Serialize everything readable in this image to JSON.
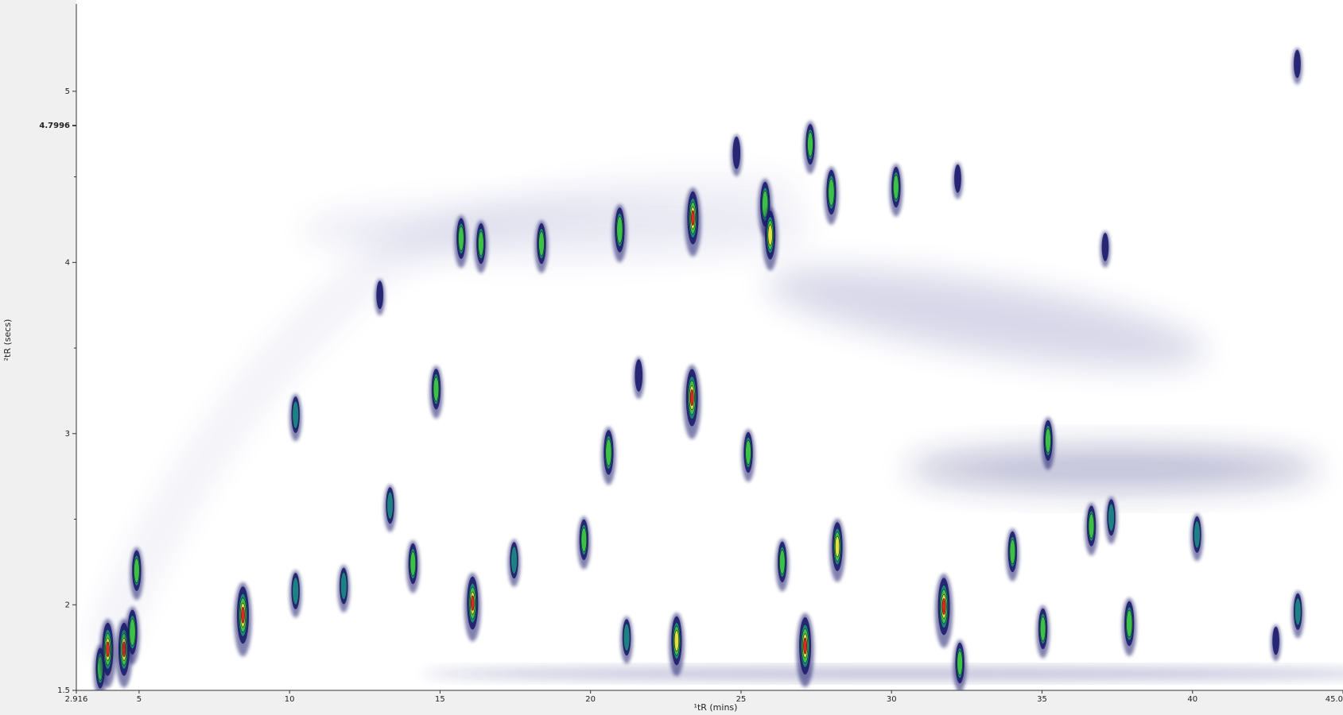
{
  "chart_data": {
    "type": "contour",
    "x_label": "¹tR (mins)",
    "y_label": "²tR (secs)",
    "xlim": [
      2.916,
      45.0
    ],
    "ylim": [
      1.5,
      5.51
    ],
    "xticks": [
      {
        "value": 2.916,
        "label": "2.916"
      },
      5,
      10,
      15,
      20,
      25,
      30,
      35,
      40,
      {
        "value": 45.0,
        "label": "45.0"
      }
    ],
    "yticks": [
      {
        "value": 1.5,
        "label": "1.5"
      },
      2,
      3,
      4,
      5
    ],
    "yminorticks": [
      2.5,
      3.5,
      4.5
    ],
    "marker_ytick": {
      "value": 4.7996,
      "label": "4.7996"
    },
    "colormap": [
      "#1c1c6e",
      "#1f7f86",
      "#3cc04a",
      "#e2e23c",
      "#e4261c"
    ],
    "x": [
      3.71,
      3.96,
      4.5,
      4.78,
      4.92,
      8.45,
      10.2,
      10.2,
      11.8,
      13.0,
      13.34,
      14.1,
      14.87,
      15.7,
      16.08,
      16.36,
      17.46,
      18.37,
      19.78,
      20.6,
      20.97,
      21.2,
      21.6,
      22.86,
      23.37,
      23.4,
      24.85,
      25.24,
      25.8,
      25.97,
      26.37,
      27.13,
      27.3,
      28.0,
      28.2,
      30.15,
      31.74,
      32.27,
      32.2,
      34.02,
      35.03,
      35.2,
      36.64,
      37.1,
      37.3,
      37.9,
      40.15,
      43.48,
      43.5,
      42.77
    ],
    "values": [
      1.63,
      1.74,
      1.74,
      1.84,
      2.2,
      1.94,
      3.11,
      2.08,
      2.11,
      3.81,
      2.58,
      2.24,
      3.26,
      4.14,
      2.01,
      4.11,
      2.26,
      4.11,
      2.38,
      2.89,
      4.19,
      1.81,
      3.34,
      1.79,
      3.21,
      4.26,
      4.64,
      2.89,
      4.34,
      4.16,
      2.25,
      1.76,
      4.69,
      4.41,
      2.34,
      4.44,
      1.99,
      1.66,
      4.49,
      2.31,
      1.86,
      2.96,
      2.46,
      4.09,
      2.51,
      1.89,
      2.41,
      5.16,
      1.96,
      1.79
    ],
    "intensity": [
      6,
      9,
      9,
      7,
      6,
      10,
      5,
      5,
      5,
      3,
      5,
      6,
      6,
      6,
      9,
      6,
      5,
      6,
      6,
      7,
      7,
      5,
      4,
      8,
      10,
      9,
      4,
      6,
      7,
      8,
      6,
      10,
      6,
      7,
      8,
      6,
      10,
      6,
      3,
      6,
      6,
      6,
      6,
      3,
      5,
      7,
      5,
      3,
      5,
      3
    ]
  }
}
